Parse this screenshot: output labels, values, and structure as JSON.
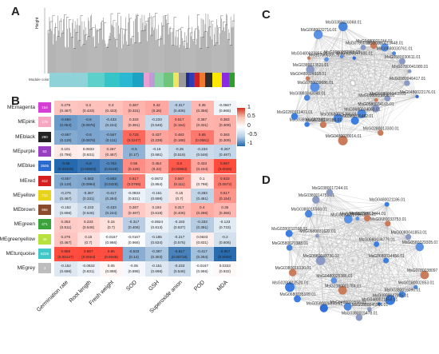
{
  "panels": {
    "a": "A",
    "b": "B",
    "c": "C",
    "d": "D"
  },
  "panel_a": {
    "ylabel": "Height",
    "module_label": "Module colors",
    "module_colors": [
      "#8fd3d8",
      "#8fd3d8",
      "#5ed0cc",
      "#35c4c8",
      "#2bb8d3",
      "#1ca3c4",
      "#e7a0d2",
      "#c09ad6",
      "#8bd2a6",
      "#6fc67a",
      "#f2e55e",
      "#9a9a9a",
      "#1f2e8c",
      "#2d3eb8",
      "#cf2027",
      "#ee7a2e",
      "#2e2e2e",
      "#fce700",
      "#8a2be2",
      "#2ba02b"
    ]
  },
  "panel_b": {
    "rows": [
      {
        "label": "MEmagenta",
        "color": "#d63fd6",
        "count": "154",
        "values": [
          "0.279",
          "0.3",
          "0.3",
          "0.367",
          "0.42",
          "-0.317",
          "0.35",
          "-0.0667"
        ],
        "pvalues": [
          "(0.467)",
          "(0.433)",
          "(0.433)",
          "(0.331)",
          "(0.26)",
          "(0.406)",
          "(0.356)",
          "(0.865)"
        ]
      },
      {
        "label": "MEpink",
        "color": "#f6a6c1",
        "count": "179",
        "values": [
          "-0.656",
          "-0.6",
          "-0.433",
          "0.333",
          "-0.233",
          "0.517",
          "0.367",
          "0.383"
        ],
        "pvalues": [
          "(0.054)",
          "(0.0876)",
          "(0.244)",
          "(0.381)",
          "(0.546)",
          "(0.154)",
          "(0.331)",
          "(0.309)"
        ]
      },
      {
        "label": "MEblack",
        "color": "#222222",
        "count": "290",
        "values": [
          "-0.557",
          "-0.6",
          "-0.567",
          "0.733",
          "0.437",
          "0.483",
          "0.65",
          "0.383"
        ],
        "pvalues": [
          "(0.119)",
          "(0.0876)",
          "(0.111)",
          "(0.0247)",
          "(0.239)",
          "(0.188)",
          "(0.0581)",
          "(0.309)"
        ]
      },
      {
        "label": "MEpurple",
        "color": "#9a3fc4",
        "count": "53",
        "values": [
          "0.101",
          "0.0833",
          "0.267",
          "-0.5",
          "-0.16",
          "-0.25",
          "-0.233",
          "-0.267"
        ],
        "pvalues": [
          "(0.796)",
          "(0.831)",
          "(0.487)",
          "(0.17)",
          "(0.681)",
          "(0.516)",
          "(0.546)",
          "(0.487)"
        ]
      },
      {
        "label": "MEblue",
        "color": "#2a6ad1",
        "count": "3505",
        "values": [
          "-0.98",
          "-0.9",
          "-0.783",
          "0.55",
          "0.454",
          "0.8",
          "0.433",
          "0.867"
        ],
        "pvalues": [
          "(0.00426)",
          "(0.00903)",
          "(0.0126)",
          "(0.125)",
          "(0.22)",
          "(0.00963)",
          "(0.244)",
          "(0.0025)"
        ]
      },
      {
        "label": "MEred",
        "color": "#d62020",
        "count": "412",
        "values": [
          "-0.557",
          "-0.583",
          "-0.683",
          "0.617",
          "-0.0672",
          "0.567",
          "0.1",
          "0.633"
        ],
        "pvalues": [
          "(0.119)",
          "(0.0994)",
          "(0.0426)",
          "(0.0769)",
          "(0.864)",
          "(0.111)",
          "(0.798)",
          "(0.0672)"
        ]
      },
      {
        "label": "MEyellow",
        "color": "#e8d21a",
        "count": "712",
        "values": [
          "-0.276",
          "-0.367",
          "-0.417",
          "-0.0833",
          "-0.151",
          "0.15",
          "-0.283",
          "0.517"
        ],
        "pvalues": [
          "(0.467)",
          "(0.331)",
          "(0.264)",
          "(0.831)",
          "(0.698)",
          "(0.7)",
          "(0.461)",
          "(0.154)"
        ]
      },
      {
        "label": "MEbrown",
        "color": "#8b4a2b",
        "count": "966",
        "values": [
          "-0.152",
          "-0.233",
          "-0.433",
          "0.267",
          "0.193",
          "0.317",
          "0.4",
          "0.35"
        ],
        "pvalues": [
          "(0.696)",
          "(0.546)",
          "(0.244)",
          "(0.487)",
          "(0.619)",
          "(0.406)",
          "(0.286)",
          "(0.356)"
        ]
      },
      {
        "label": "MEgreen",
        "color": "#3aa43a",
        "count": "471",
        "values": [
          "0.253",
          "0.233",
          "0.15",
          "-0.317",
          "-0.0924",
          "-0.183",
          "-0.333",
          "-0.133"
        ],
        "pvalues": [
          "(0.511)",
          "(0.546)",
          "(0.7)",
          "(0.406)",
          "(0.813)",
          "(0.637)",
          "(0.381)",
          "(0.733)"
        ]
      },
      {
        "label": "MEgreenyellow",
        "color": "#b6e23b",
        "count": "45",
        "values": [
          "0.276",
          "0.15",
          "-0.0167",
          "-0.0167",
          "-0.185",
          "-0.217",
          "0.0833",
          "-0.2"
        ],
        "pvalues": [
          "(0.467)",
          "(0.7)",
          "(0.966)",
          "(0.966)",
          "(0.634)",
          "(0.575)",
          "(0.831)",
          "(0.606)"
        ]
      },
      {
        "label": "MEturquoise",
        "color": "#40c8c8",
        "count": "6225",
        "values": [
          "0.858",
          "0.867",
          "0.85",
          "-0.533",
          "-0.387",
          "-0.817",
          "-0.417",
          "-0.967"
        ],
        "pvalues": [
          "(0.00147)",
          "(0.0024)",
          "(0.0036)",
          "(0.14)",
          "(0.303)",
          "(0.00719)",
          "(0.264)",
          "(0.0002)"
        ]
      },
      {
        "label": "MEgrey",
        "color": "#bdbdbd",
        "count": "3",
        "values": [
          "-0.152",
          "-0.0833",
          "0.05",
          "-0.05",
          "-0.151",
          "-0.233",
          "-0.0167",
          "0.0333"
        ],
        "pvalues": [
          "(0.696)",
          "(0.831)",
          "(0.898)",
          "(0.898)",
          "(0.698)",
          "(0.546)",
          "(0.966)",
          "(0.932)"
        ]
      }
    ],
    "columns": [
      "Germination rate",
      "Root length",
      "Fresh weight",
      "SOD",
      "GSH",
      "Superoxide anion",
      "POD",
      "MDA"
    ],
    "scale_ticks": [
      "1",
      "0.5",
      "0",
      "-0.5",
      "-1"
    ]
  },
  "panel_c": {
    "labels": [
      "MsG0080046417.01",
      "MsG0480022176.01",
      "MsG0780040405.01",
      "MsG0580029930.01",
      "MsG0580034165.01",
      "MsG0280013300.01",
      "MsG0680034063.01",
      "MsG0380015482.01",
      "MsG0480020014.01",
      "MsG0580026356.01",
      "MsG0780038188.01",
      "MsG0380016822.01",
      "MsG0280011401.01",
      "MsG0880043048.01",
      "MsG0780039686.01",
      "MsG0480024918.01",
      "MsG0380013521.01",
      "MsG0480023355.01",
      "MsG0780038576.01",
      "MsG0680032716.01",
      "MsG0680032765.01",
      "MsG0380016068.01",
      "MsG0880047600.01",
      "MsG0780039331.01",
      "MsG0480021744.01",
      "MsG0380013448.01",
      "MsG0680030761.01",
      "MsG0580030611.01",
      "MsG0780041080.01"
    ]
  },
  "panel_d": {
    "labels": [
      "MsG0680034456.01",
      "MsG0780038097.01",
      "MsG0180002853.01",
      "MsG0380016096.01",
      "MsG0880047925.01",
      "MsG0480021458.01",
      "MsG0880045916.01",
      "MsG0380015478.01",
      "MsG0480022556.01",
      "MsG0180001784.01",
      "MsG0580028353.01",
      "MsG0480025386.01",
      "MsG0680035109.01",
      "MsG0280012520.01",
      "MsG0380016130.01",
      "MsG0880043730.01",
      "MsG0580029383.01",
      "MsG0280011598.01",
      "MsG0580031622.01",
      "MsG0380015568.01",
      "MsG0380014751.01",
      "MsG0380017244.01",
      "MsG0280012759.01",
      "MsG0880047306.01",
      "MsG0280012444.01",
      "MsG0480021186.01",
      "MsG0680033753.01",
      "MsG0680034779.01",
      "MsG0080041853.01",
      "MsG0580029305.01"
    ]
  }
}
